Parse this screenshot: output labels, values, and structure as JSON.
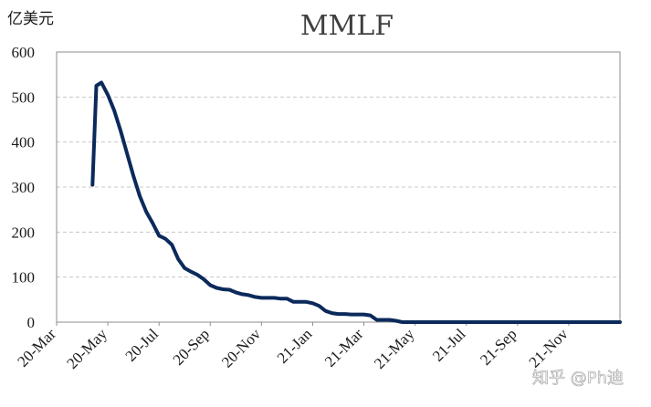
{
  "chart_data": {
    "type": "line",
    "title": "MMLF",
    "ylabel": "亿美元",
    "xlabel": "",
    "ylim": [
      0,
      600
    ],
    "yticks": [
      "0",
      "100",
      "200",
      "300",
      "400",
      "500",
      "600"
    ],
    "xticks": [
      "20-Mar",
      "20-May",
      "20-Jul",
      "20-Sep",
      "20-Nov",
      "21-Jan",
      "21-Mar",
      "21-May",
      "21-Jul",
      "21-Sep",
      "21-Nov"
    ],
    "grid": "horizontal dashed",
    "line_color": "#0b2a5b",
    "series": [
      {
        "name": "MMLF",
        "x": [
          1.4,
          1.55,
          1.75,
          2.0,
          2.25,
          2.5,
          2.75,
          3.0,
          3.25,
          3.5,
          3.75,
          4.0,
          4.25,
          4.5,
          4.75,
          5.0,
          5.25,
          5.5,
          5.75,
          6.0,
          6.25,
          6.5,
          6.75,
          7.0,
          7.25,
          7.5,
          7.75,
          8.0,
          8.25,
          8.5,
          8.75,
          9.0,
          9.25,
          9.5,
          9.75,
          10.0,
          10.25,
          10.5,
          10.75,
          11.0,
          11.25,
          11.5,
          11.75,
          12.0,
          12.25,
          12.5,
          12.75,
          13.0,
          13.25,
          13.5,
          13.75,
          14.0,
          14.25,
          14.5,
          14.75,
          15.0,
          15.5,
          16.0,
          17.0,
          18.0,
          19.0,
          20.0,
          21.0,
          22.0
        ],
        "values": [
          305,
          525,
          532,
          505,
          470,
          425,
          375,
          325,
          280,
          245,
          220,
          192,
          185,
          172,
          140,
          120,
          112,
          105,
          95,
          82,
          76,
          73,
          72,
          66,
          62,
          60,
          56,
          54,
          54,
          54,
          52,
          52,
          45,
          45,
          45,
          42,
          36,
          25,
          20,
          18,
          18,
          17,
          17,
          17,
          15,
          5,
          5,
          5,
          3,
          0,
          0,
          0,
          0,
          0,
          0,
          0,
          0,
          0,
          0,
          0,
          0,
          0,
          0,
          0
        ]
      }
    ]
  },
  "watermark": "知乎 @Ph迪"
}
